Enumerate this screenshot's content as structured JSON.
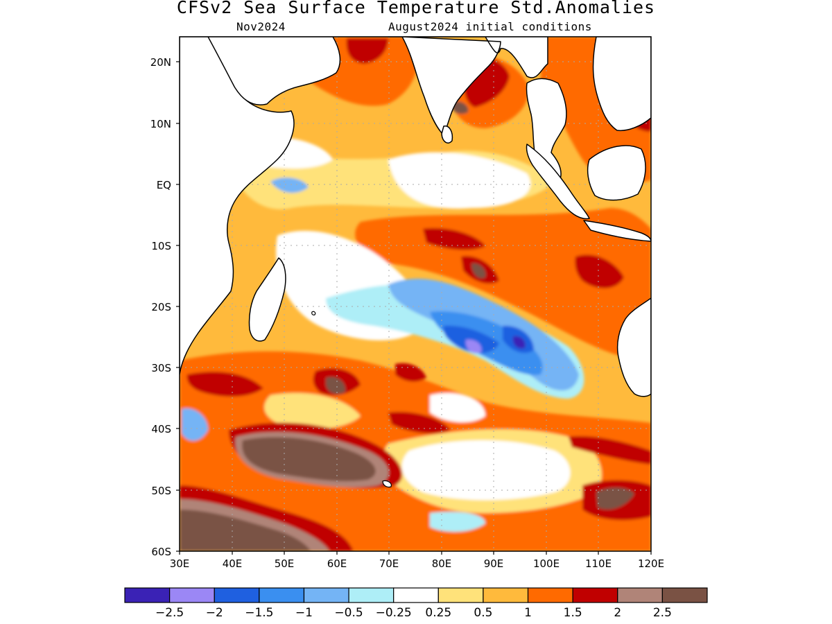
{
  "title": "CFSv2 Sea Surface Temperature Std.Anomalies",
  "forecast_month": "Nov2024",
  "initial_conditions": "August2024 initial conditions",
  "map": {
    "lon_range": [
      30,
      120
    ],
    "lat_range": [
      -60,
      24
    ],
    "lon_ticks": [
      "30E",
      "40E",
      "50E",
      "60E",
      "70E",
      "80E",
      "90E",
      "100E",
      "110E",
      "120E"
    ],
    "lat_ticks": [
      "20N",
      "10N",
      "EQ",
      "10S",
      "20S",
      "30S",
      "40S",
      "50S",
      "60S"
    ],
    "grid": "dotted",
    "coastline_color": "#000000"
  },
  "colorbar": {
    "colors": [
      "#3a22b5",
      "#9b87f5",
      "#1f60e0",
      "#3a8ff0",
      "#74b4f5",
      "#aeeef7",
      "#ffffff",
      "#ffe27a",
      "#ffba3c",
      "#ff6a00",
      "#c00000",
      "#b08478",
      "#7a5244"
    ],
    "labels": [
      "−2.5",
      "−2",
      "−1.5",
      "−1",
      "−0.5",
      "−0.25",
      "0.25",
      "0.5",
      "1",
      "1.5",
      "2",
      "2.5"
    ]
  }
}
